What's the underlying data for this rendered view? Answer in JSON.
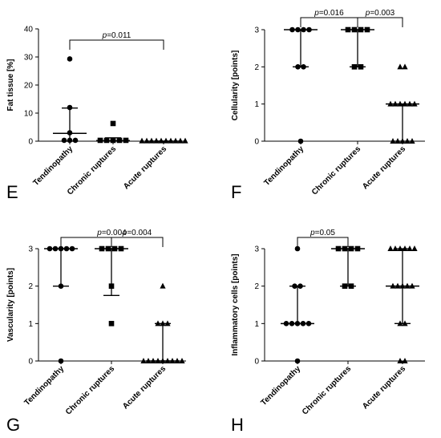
{
  "chart_data": [
    {
      "type": "scatter",
      "panel": "E",
      "ylabel": "Fat tissue [%]",
      "ylim": [
        0,
        40
      ],
      "yticks": [
        "0",
        "10",
        "20",
        "30",
        "40"
      ],
      "categories": [
        "Tendinopathy",
        "Chronic ruptures",
        "Acute ruptures"
      ],
      "markers": [
        "circle",
        "square",
        "triangle"
      ],
      "points": [
        [
          29.3,
          12,
          3,
          0.3,
          0.3,
          0.3
        ],
        [
          6.3,
          0.3,
          0.3,
          0.3,
          0.3,
          0.3
        ],
        [
          0.1,
          0.1,
          0.1,
          0.1,
          0.1,
          0.1,
          0.1,
          0.1,
          0.1,
          0.1
        ]
      ],
      "median": [
        2.8,
        0.2,
        0
      ],
      "iqr": [
        [
          0,
          11.8
        ],
        [
          0,
          1.2
        ],
        [
          0,
          0
        ]
      ],
      "brackets": [
        {
          "from": 0,
          "to": 2,
          "p_prefix": "p",
          "p_value": "=0.011"
        }
      ]
    },
    {
      "type": "scatter",
      "panel": "F",
      "ylabel": "Cellularity [points]",
      "ylim": [
        0,
        3
      ],
      "yticks": [
        "0",
        "1",
        "2",
        "3"
      ],
      "categories": [
        "Tendinopathy",
        "Chronic ruptures",
        "Acute ruptures"
      ],
      "markers": [
        "circle",
        "square",
        "triangle"
      ],
      "points": [
        [
          3,
          3,
          3,
          3,
          2,
          2,
          0
        ],
        [
          3,
          3,
          3,
          3,
          2,
          2
        ],
        [
          2,
          2,
          1,
          1,
          1,
          1,
          1,
          1,
          0,
          0,
          0,
          0,
          0
        ]
      ],
      "median": [
        3,
        3,
        1
      ],
      "iqr": [
        [
          2,
          3
        ],
        [
          2,
          3
        ],
        [
          0,
          1
        ]
      ],
      "brackets": [
        {
          "from": 0,
          "to": 1,
          "p_prefix": "p",
          "p_value": "=0.016"
        },
        {
          "from": 1,
          "to": 2,
          "p_prefix": "p",
          "p_value": "=0.003"
        }
      ]
    },
    {
      "type": "scatter",
      "panel": "G",
      "ylabel": "Vascularity [points]",
      "ylim": [
        0,
        3
      ],
      "yticks": [
        "0",
        "1",
        "2",
        "3"
      ],
      "categories": [
        "Tendinopathy",
        "Chronic ruptures",
        "Acute ruptures"
      ],
      "markers": [
        "circle",
        "square",
        "triangle"
      ],
      "points": [
        [
          3,
          3,
          3,
          3,
          3,
          2,
          0
        ],
        [
          3,
          3,
          3,
          3,
          2,
          1
        ],
        [
          2,
          1,
          1,
          1,
          0,
          0,
          0,
          0,
          0,
          0,
          0,
          0,
          0
        ]
      ],
      "median": [
        3,
        3,
        0
      ],
      "iqr": [
        [
          2,
          3
        ],
        [
          1.75,
          3
        ],
        [
          0,
          1
        ]
      ],
      "brackets": [
        {
          "from": 0,
          "to": 2,
          "p_prefix": "p",
          "p_value": "=0.004"
        },
        {
          "from": 1,
          "to": 2,
          "p_prefix": "p",
          "p_value": "=0.004"
        }
      ]
    },
    {
      "type": "scatter",
      "panel": "H",
      "ylabel": "Inflammatory cells [points]",
      "ylim": [
        0,
        3
      ],
      "yticks": [
        "0",
        "1",
        "2",
        "3"
      ],
      "categories": [
        "Tendinopathy",
        "Chronic ruptures",
        "Acute ruptures"
      ],
      "markers": [
        "circle",
        "square",
        "triangle"
      ],
      "points": [
        [
          3,
          2,
          2,
          1,
          1,
          1,
          1,
          1,
          0
        ],
        [
          3,
          3,
          3,
          3,
          2,
          2
        ],
        [
          3,
          3,
          3,
          3,
          3,
          3,
          2,
          2,
          2,
          2,
          2,
          1,
          1,
          0,
          0
        ]
      ],
      "median": [
        1,
        3,
        2
      ],
      "iqr": [
        [
          1,
          2
        ],
        [
          2,
          3
        ],
        [
          1,
          3
        ]
      ],
      "brackets": [
        {
          "from": 0,
          "to": 1,
          "p_prefix": "p",
          "p_value": "=0.05"
        }
      ]
    }
  ]
}
